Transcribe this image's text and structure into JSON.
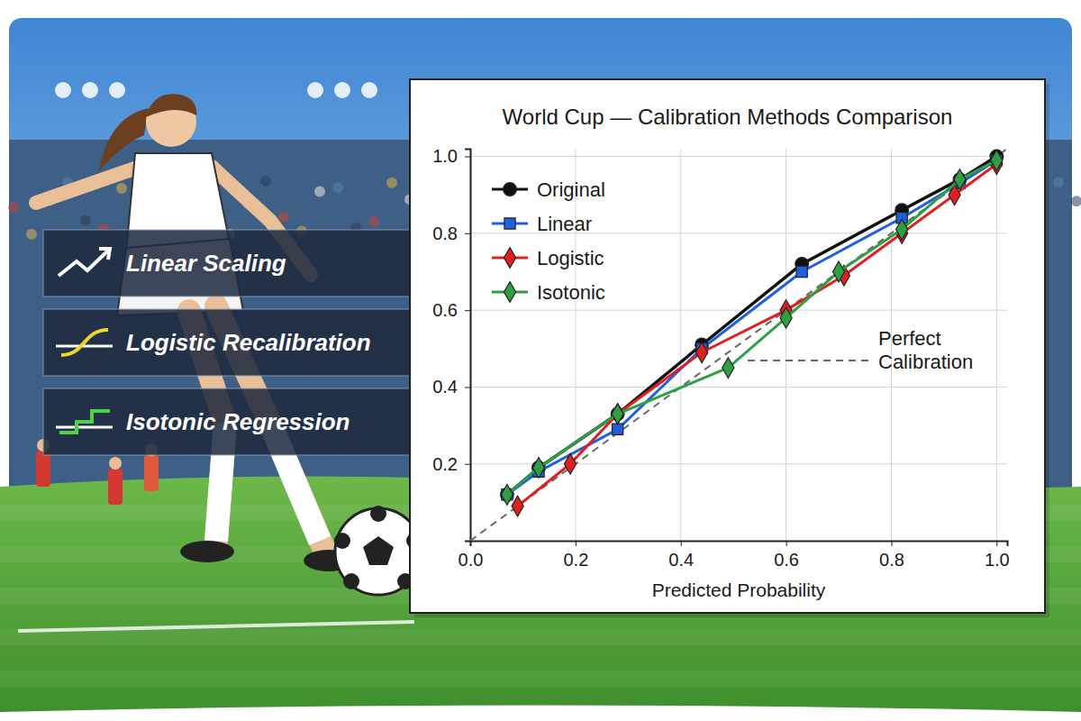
{
  "chart_data": {
    "type": "line",
    "title": "World Cup — Calibration Methods Comparison",
    "x_label": "Predicted Probability",
    "xlim": [
      0,
      1.02
    ],
    "ylim": [
      0,
      1.02
    ],
    "xticks": [
      {
        "value": 0,
        "label": "0.0"
      },
      0.2,
      0.4,
      0.6,
      0.8,
      {
        "value": 1,
        "label": "1.0"
      }
    ],
    "yticks": [
      0.2,
      0.4,
      0.6,
      0.8,
      {
        "value": 1,
        "label": "1.0"
      }
    ],
    "grid": true,
    "legend": "upper left",
    "annotations": [
      "Perfect Calibration"
    ],
    "panel_labels": [
      "Linear Scaling",
      "Logistic Recalibration",
      "Isotonic Regression"
    ],
    "series": [
      {
        "name": "Original",
        "color": "#111111",
        "marker": "circle",
        "x": [
          0.07,
          0.13,
          0.28,
          0.44,
          0.63,
          0.82,
          0.93,
          1.0
        ],
        "values": [
          0.12,
          0.19,
          0.33,
          0.51,
          0.72,
          0.86,
          0.94,
          1.0
        ]
      },
      {
        "name": "Linear",
        "color": "#1f5fe0",
        "marker": "square",
        "x": [
          0.07,
          0.13,
          0.28,
          0.44,
          0.63,
          0.82,
          0.93,
          1.0
        ],
        "values": [
          0.12,
          0.18,
          0.29,
          0.5,
          0.7,
          0.84,
          0.93,
          0.99
        ]
      },
      {
        "name": "Logistic",
        "color": "#e02020",
        "marker": "diamond",
        "x": [
          0.09,
          0.19,
          0.28,
          0.44,
          0.6,
          0.71,
          0.82,
          0.92,
          1.0
        ],
        "values": [
          0.09,
          0.2,
          0.33,
          0.49,
          0.6,
          0.69,
          0.8,
          0.9,
          0.98
        ]
      },
      {
        "name": "Isotonic",
        "color": "#2ea043",
        "marker": "diamond",
        "x": [
          0.07,
          0.13,
          0.28,
          0.49,
          0.6,
          0.7,
          0.82,
          0.93,
          1.0
        ],
        "values": [
          0.12,
          0.19,
          0.33,
          0.45,
          0.58,
          0.7,
          0.81,
          0.94,
          0.99
        ]
      }
    ]
  }
}
